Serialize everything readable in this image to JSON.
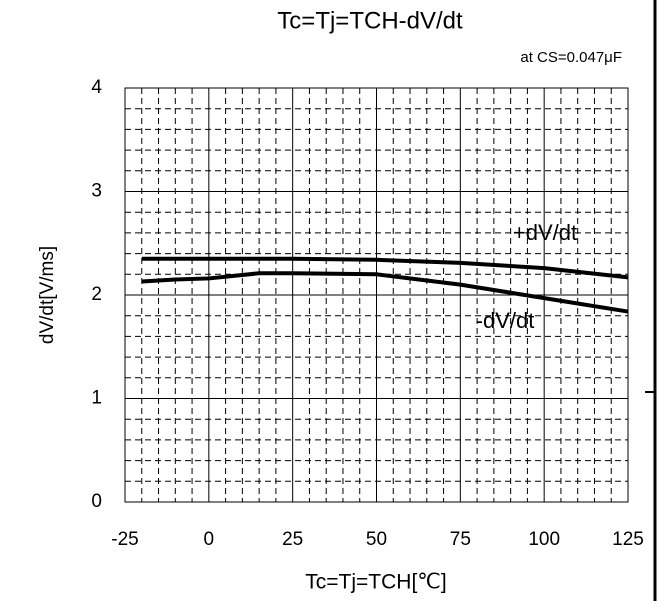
{
  "chart_data": {
    "type": "line",
    "title": "Tc=Tj=TCH-dV/dt",
    "subtitle": "at CS=0.047μF",
    "x_label": "Tc=Tj=TCH[℃]",
    "y_label": "dV/dt[V/ms]",
    "x": [
      -20,
      -10,
      0,
      15,
      25,
      50,
      75,
      100,
      125
    ],
    "series": [
      {
        "name": "+dV/dt",
        "color": "#000000",
        "values": [
          2.35,
          2.35,
          2.35,
          2.35,
          2.35,
          2.34,
          2.31,
          2.26,
          2.17
        ]
      },
      {
        "name": "-dV/dt",
        "color": "#000000",
        "values": [
          2.13,
          2.15,
          2.16,
          2.21,
          2.21,
          2.2,
          2.1,
          1.97,
          1.84
        ]
      }
    ],
    "xlim": [
      -25,
      125
    ],
    "xticks": [
      -25,
      0,
      25,
      50,
      75,
      100,
      125
    ],
    "ylim": [
      0,
      4
    ],
    "yticks": [
      0,
      1,
      2,
      3,
      4
    ],
    "grid": true,
    "minor_grid_divisions": 5
  }
}
